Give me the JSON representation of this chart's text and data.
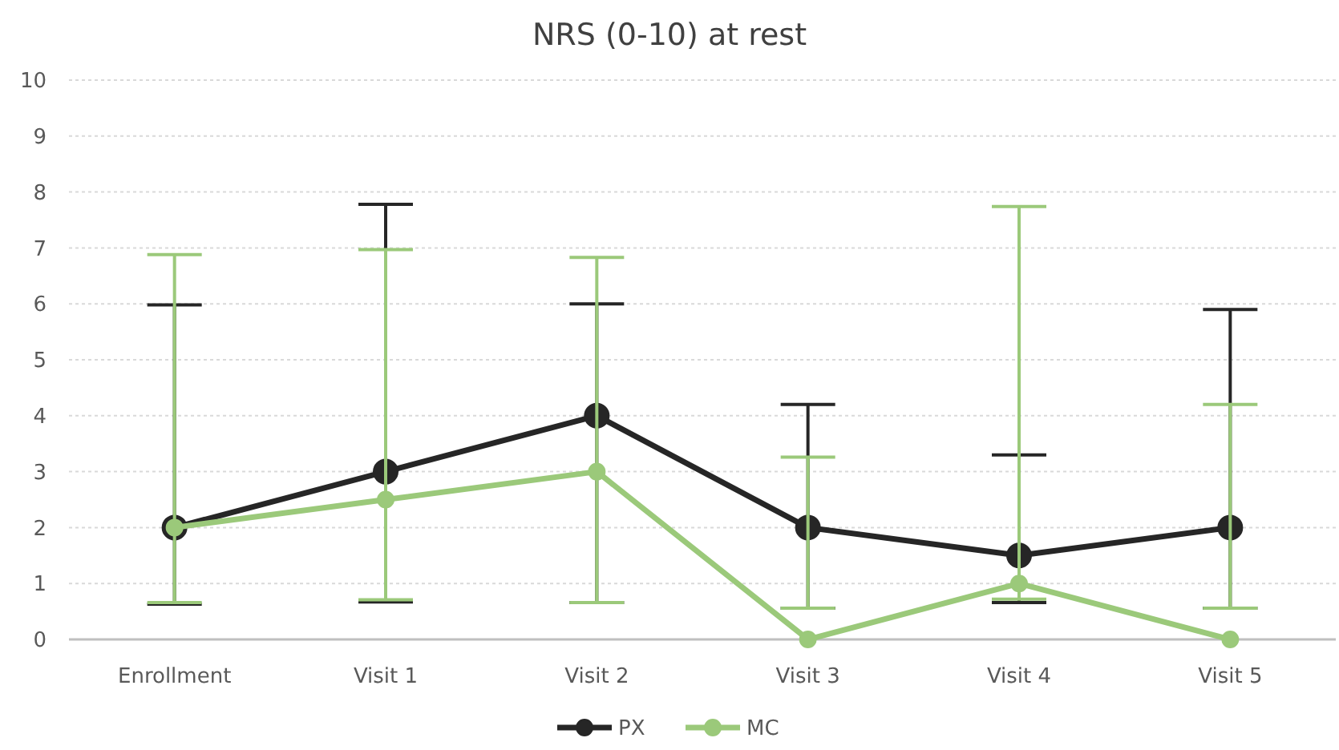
{
  "chart_data": {
    "type": "line",
    "title": "NRS (0-10) at rest",
    "categories": [
      "Enrollment",
      "Visit 1",
      "Visit 2",
      "Visit 3",
      "Visit 4",
      "Visit 5"
    ],
    "ylim": [
      0,
      10
    ],
    "yticks": [
      0,
      1,
      2,
      3,
      4,
      5,
      6,
      7,
      8,
      9,
      10
    ],
    "grid": "y",
    "legend": "bottom",
    "marker": "circle",
    "line_style": "solid",
    "series": [
      {
        "name": "PX",
        "color": "#262626",
        "values": [
          2,
          3,
          4,
          2,
          1.5,
          2
        ],
        "errors": [
          [
            0.63,
            5.98
          ],
          [
            0.67,
            7.78
          ],
          [
            0.66,
            6.0
          ],
          [
            0.56,
            4.2
          ],
          [
            0.66,
            3.3
          ],
          [
            0.56,
            5.9
          ]
        ]
      },
      {
        "name": "MC",
        "color": "#9bc97a",
        "values": [
          2,
          2.5,
          3,
          0,
          1,
          0
        ],
        "errors": [
          [
            0.66,
            6.88
          ],
          [
            0.71,
            6.97
          ],
          [
            0.66,
            6.83
          ],
          [
            0.56,
            3.26
          ],
          [
            0.72,
            7.74
          ],
          [
            0.56,
            4.2
          ]
        ]
      }
    ]
  }
}
